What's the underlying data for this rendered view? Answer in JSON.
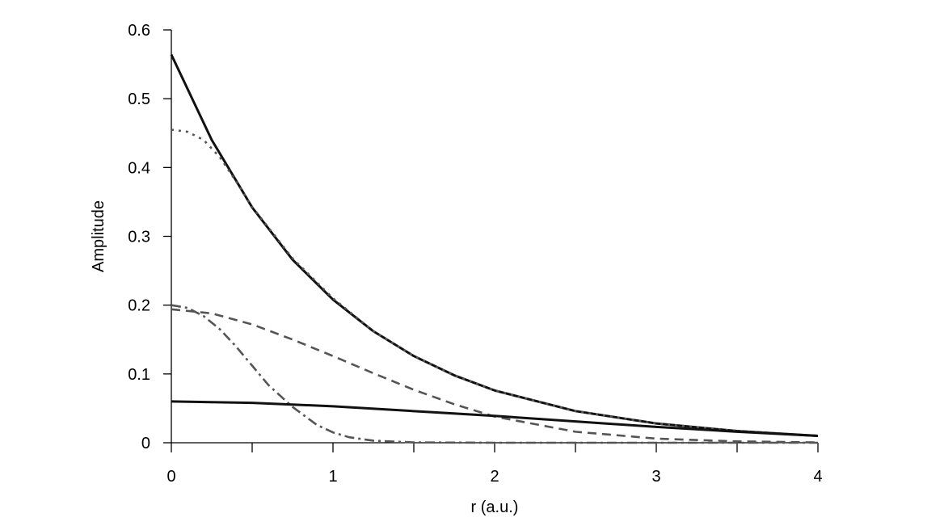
{
  "chart_data": {
    "type": "line",
    "title": "",
    "xlabel": "r (a.u.)",
    "ylabel": "Amplitude",
    "xlim": [
      0,
      4
    ],
    "ylim": [
      0,
      0.6
    ],
    "x_ticks": [
      0,
      1,
      2,
      3,
      4
    ],
    "x_minor_ticks": [
      0.5,
      1.5,
      2.5,
      3.5
    ],
    "y_ticks": [
      0,
      0.1,
      0.2,
      0.3,
      0.4,
      0.5,
      0.6
    ],
    "x_tick_labels": [
      "0",
      "1",
      "2",
      "3",
      "4"
    ],
    "y_tick_labels": [
      "0",
      "0.1",
      "0.2",
      "0.3",
      "0.4",
      "0.5",
      "0.6"
    ],
    "grid": false,
    "legend": "none",
    "series": [
      {
        "style": "solid",
        "color": "#111111",
        "x": [
          0,
          0.25,
          0.5,
          0.75,
          1,
          1.25,
          1.5,
          1.75,
          2,
          2.5,
          3,
          3.5,
          4
        ],
        "values": [
          0.564,
          0.44,
          0.342,
          0.266,
          0.208,
          0.162,
          0.126,
          0.098,
          0.076,
          0.046,
          0.028,
          0.017,
          0.01
        ]
      },
      {
        "style": "dotted",
        "color": "#555555",
        "x": [
          0,
          0.1,
          0.2,
          0.3,
          0.4,
          0.5,
          0.75,
          1,
          1.25,
          1.5,
          1.75,
          2,
          2.5,
          3,
          3.5,
          4
        ],
        "values": [
          0.455,
          0.452,
          0.44,
          0.415,
          0.38,
          0.343,
          0.268,
          0.21,
          0.162,
          0.126,
          0.098,
          0.076,
          0.046,
          0.028,
          0.017,
          0.01
        ]
      },
      {
        "style": "dashed",
        "color": "#555555",
        "x": [
          0,
          0.25,
          0.5,
          0.75,
          1,
          1.25,
          1.5,
          1.75,
          2,
          2.5,
          3,
          3.5,
          4
        ],
        "values": [
          0.194,
          0.188,
          0.172,
          0.15,
          0.126,
          0.101,
          0.077,
          0.056,
          0.038,
          0.016,
          0.006,
          0.002,
          0.0005
        ]
      },
      {
        "style": "dash-dot",
        "color": "#555555",
        "x": [
          0,
          0.1,
          0.2,
          0.3,
          0.4,
          0.5,
          0.6,
          0.75,
          0.9,
          1,
          1.1,
          1.25,
          1.5,
          2,
          3,
          4
        ],
        "values": [
          0.2,
          0.196,
          0.184,
          0.165,
          0.14,
          0.112,
          0.084,
          0.052,
          0.026,
          0.015,
          0.008,
          0.003,
          0.0005,
          0,
          0,
          0
        ]
      },
      {
        "style": "solid",
        "color": "#111111",
        "x": [
          0,
          0.5,
          1,
          1.5,
          2,
          2.5,
          3,
          3.5,
          4
        ],
        "values": [
          0.06,
          0.058,
          0.053,
          0.046,
          0.039,
          0.031,
          0.023,
          0.016,
          0.01
        ]
      }
    ]
  }
}
